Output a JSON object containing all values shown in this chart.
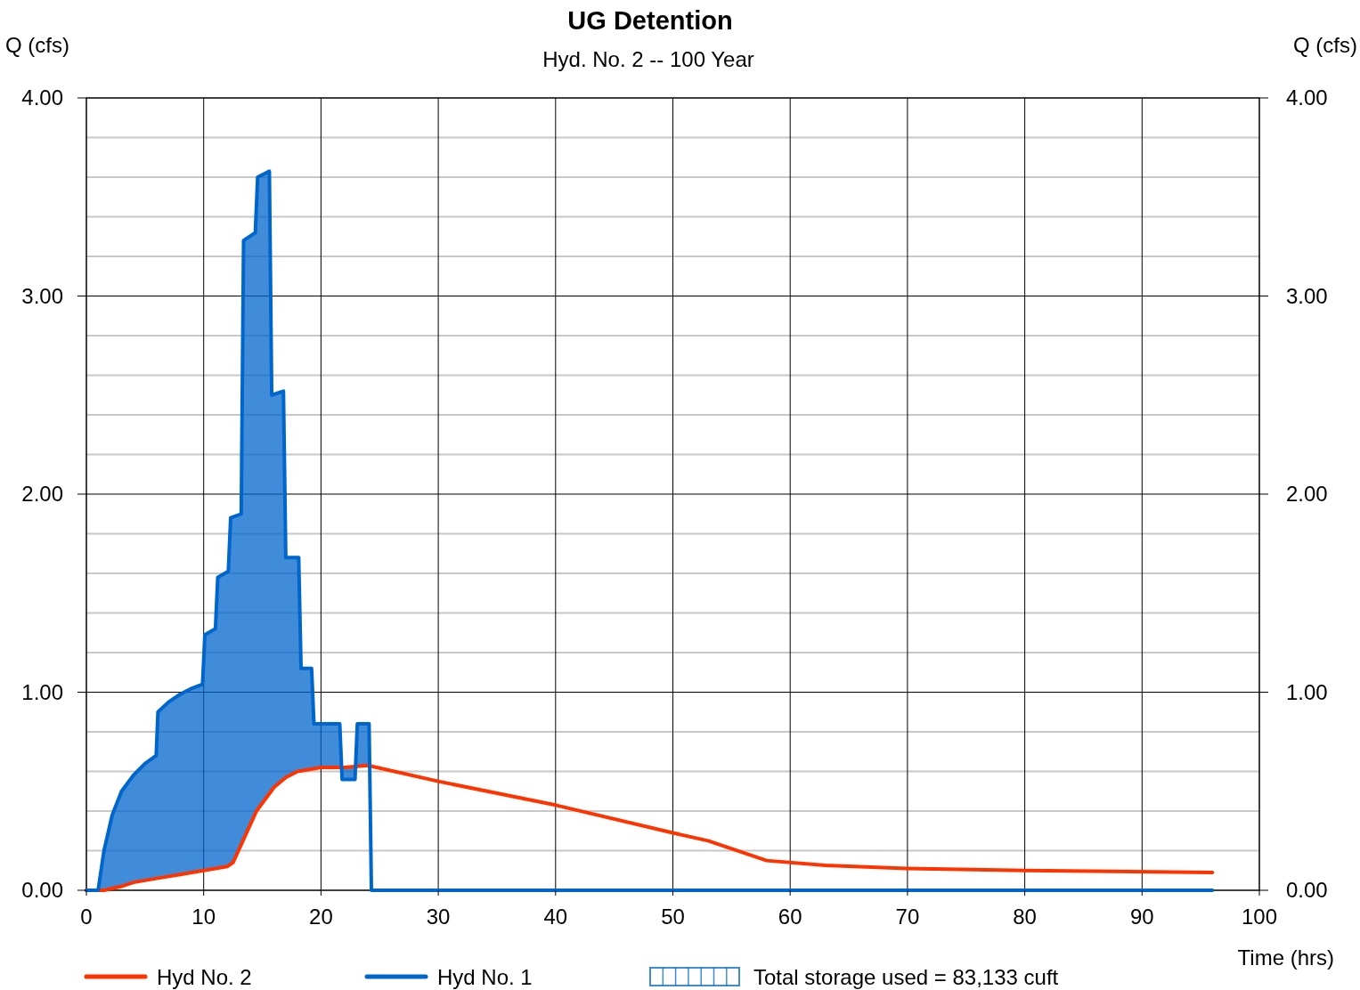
{
  "chart_data": {
    "type": "line",
    "title": "UG Detention",
    "subtitle": "Hyd. No. 2 -- 100 Year",
    "xlabel": "Time (hrs)",
    "ylabel": "Q (cfs)",
    "y2label": "Q (cfs)",
    "annotations": [
      "Total storage used = 83,133 cuft"
    ],
    "xlim": [
      0,
      100
    ],
    "xticks": [
      0,
      10,
      20,
      30,
      40,
      50,
      60,
      70,
      80,
      90,
      100
    ],
    "ylim": [
      0,
      4
    ],
    "yticks": [
      {
        "value": 0,
        "label": "0.00"
      },
      {
        "value": 0.2,
        "label": null
      },
      {
        "value": 0.4,
        "label": null
      },
      {
        "value": 0.6,
        "label": null
      },
      {
        "value": 0.8,
        "label": null
      },
      {
        "value": 1,
        "label": "1.00"
      },
      {
        "value": 1.2,
        "label": null
      },
      {
        "value": 1.4,
        "label": null
      },
      {
        "value": 1.6,
        "label": null
      },
      {
        "value": 1.8,
        "label": null
      },
      {
        "value": 2,
        "label": "2.00"
      },
      {
        "value": 2.2,
        "label": null
      },
      {
        "value": 2.4,
        "label": null
      },
      {
        "value": 2.6,
        "label": null
      },
      {
        "value": 2.8,
        "label": null
      },
      {
        "value": 3,
        "label": "3.00"
      },
      {
        "value": 3.2,
        "label": null
      },
      {
        "value": 3.4,
        "label": null
      },
      {
        "value": 3.6,
        "label": null
      },
      {
        "value": 3.8,
        "label": null
      },
      {
        "value": 4,
        "label": "4.00"
      }
    ],
    "y2lim": [
      0,
      4
    ],
    "y2ticks": [
      {
        "value": 0,
        "label": "0.00"
      },
      {
        "value": 1,
        "label": "1.00"
      },
      {
        "value": 2,
        "label": "2.00"
      },
      {
        "value": 3,
        "label": "3.00"
      },
      {
        "value": 4,
        "label": "4.00"
      }
    ],
    "grid": true,
    "legend": "bottom",
    "line_style": "solid",
    "marker": "none",
    "series": [
      {
        "name": "Hyd No. 2",
        "color": "#ff3300",
        "x": [
          0,
          1.5,
          3,
          4,
          6,
          8,
          10,
          12,
          12.5,
          13.5,
          14.5,
          16,
          17,
          18,
          19,
          20,
          22,
          24,
          30,
          40,
          50,
          53,
          58,
          63,
          70,
          80,
          96
        ],
        "values": [
          0,
          0,
          0.02,
          0.04,
          0.06,
          0.08,
          0.1,
          0.12,
          0.14,
          0.27,
          0.4,
          0.52,
          0.57,
          0.6,
          0.61,
          0.62,
          0.62,
          0.63,
          0.55,
          0.43,
          0.29,
          0.25,
          0.15,
          0.126,
          0.11,
          0.1,
          0.09
        ]
      },
      {
        "name": "Hyd No. 1",
        "color": "#0066cc",
        "x": [
          0,
          1.0,
          1.5,
          2.2,
          3,
          4,
          5,
          5.95,
          6.1,
          7,
          8,
          9,
          9.9,
          10.1,
          11,
          11.2,
          12.1,
          12.3,
          13.2,
          13.4,
          14.4,
          14.6,
          15.6,
          15.8,
          16.8,
          17,
          18.1,
          18.3,
          19.2,
          19.4,
          21.6,
          21.8,
          22.9,
          23.1,
          24.1,
          24.3,
          96
        ],
        "values": [
          0,
          0,
          0.2,
          0.38,
          0.5,
          0.58,
          0.64,
          0.68,
          0.9,
          0.95,
          0.99,
          1.02,
          1.04,
          1.29,
          1.32,
          1.58,
          1.61,
          1.88,
          1.9,
          3.28,
          3.32,
          3.6,
          3.63,
          2.5,
          2.52,
          1.68,
          1.68,
          1.12,
          1.12,
          0.84,
          0.84,
          0.56,
          0.56,
          0.84,
          0.84,
          0,
          0
        ],
        "upper": [
          null,
          0,
          0.2,
          0.38,
          0.5,
          0.58,
          0.64,
          0.68,
          0.9,
          0.95,
          0.99,
          1.02,
          1.04,
          1.29,
          1.32,
          1.58,
          1.61,
          1.88,
          1.9,
          3.28,
          3.32,
          3.6,
          3.63,
          2.5,
          2.52,
          1.68,
          1.68,
          1.12,
          1.12,
          0.84,
          0.84,
          0.56,
          0.56,
          0.84,
          0.84,
          null,
          null
        ],
        "lower": [
          null,
          0,
          0,
          0.01,
          0.02,
          0.04,
          0.05,
          0.06,
          0.06,
          0.07,
          0.08,
          0.09,
          0.1,
          0.1,
          0.11,
          0.11,
          0.12,
          0.13,
          0.23,
          0.26,
          0.39,
          0.41,
          0.5,
          0.51,
          0.56,
          0.57,
          0.6,
          0.6,
          0.61,
          0.61,
          0.62,
          0.62,
          0.62,
          0.62,
          0.63,
          null,
          null
        ]
      }
    ]
  }
}
